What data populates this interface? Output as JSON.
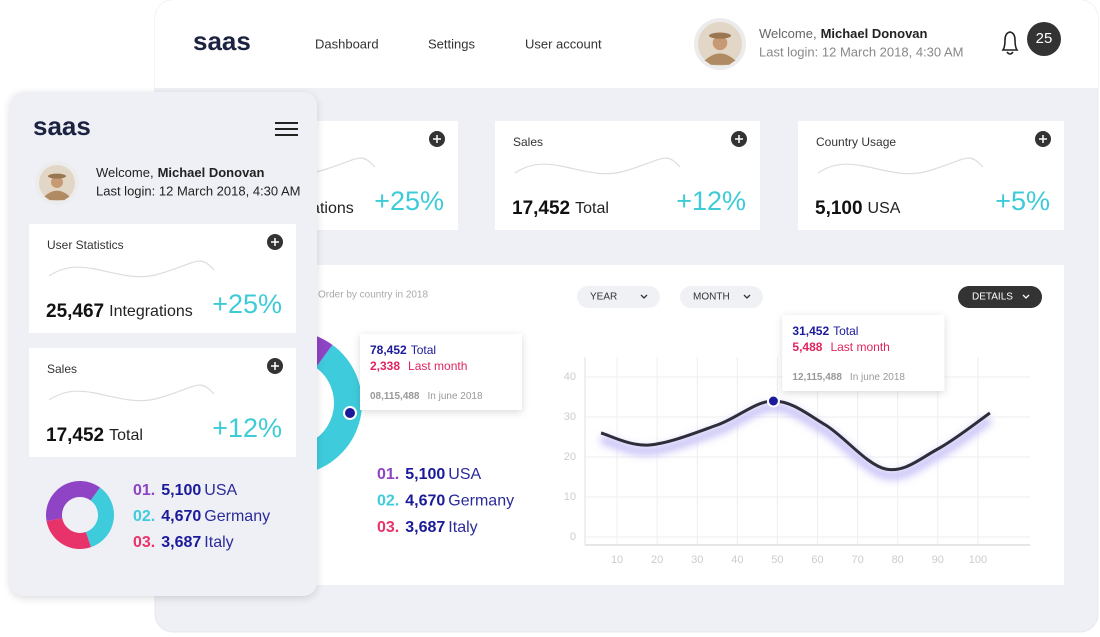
{
  "nav": {
    "logo": "saas",
    "links": [
      "Dashboard",
      "Settings",
      "User account"
    ],
    "welcome": "Welcome,",
    "user": "Michael Donovan",
    "last_login": "Last login: 12 March 2018, 4:30 AM",
    "notifications": 25
  },
  "stats": [
    {
      "title": "User Statistics",
      "value": "25,467",
      "unit": "Integrations",
      "change": "+25%"
    },
    {
      "title": "Sales",
      "value": "17,452",
      "unit": "Total",
      "change": "+12%"
    },
    {
      "title": "Country Usage",
      "value": "5,100",
      "unit": "USA",
      "change": "+5%"
    }
  ],
  "countries": {
    "subtitle": "Order by country in 2018",
    "filters": [
      "YEAR",
      "MONTH"
    ],
    "details": "DETAILS",
    "tooltip": {
      "total": "78,452",
      "total_label": "Total",
      "last_month": "2,338",
      "last_month_label": "Last month",
      "history": "08,115,488",
      "history_label": "In june 2018"
    },
    "items": [
      {
        "rank": "01.",
        "value": 5100,
        "value_label": "5,100",
        "name": "USA",
        "color": "#8e44c4"
      },
      {
        "rank": "02.",
        "value": 4670,
        "value_label": "4,670",
        "name": "Germany",
        "color": "#3ecbdc"
      },
      {
        "rank": "03.",
        "value": 3687,
        "value_label": "3,687",
        "name": "Italy",
        "color": "#e8336a"
      }
    ]
  },
  "chart_data": {
    "type": "line",
    "x": [
      6,
      18,
      35,
      49,
      62,
      77,
      90,
      103
    ],
    "values": [
      26,
      23,
      28,
      34,
      28,
      17,
      22,
      31
    ],
    "xlim": [
      2,
      113
    ],
    "ylim": [
      -2,
      45
    ],
    "xticks": [
      10,
      20,
      30,
      40,
      50,
      60,
      70,
      80,
      90,
      100
    ],
    "yticks": [
      0,
      10,
      20,
      30,
      40
    ],
    "grid": true,
    "color": "#2e2e3a",
    "tooltip": {
      "total": "31,452",
      "total_label": "Total",
      "last_month": "5,488",
      "last_month_label": "Last month",
      "history": "12,115,488",
      "history_label": "In june 2018"
    }
  }
}
